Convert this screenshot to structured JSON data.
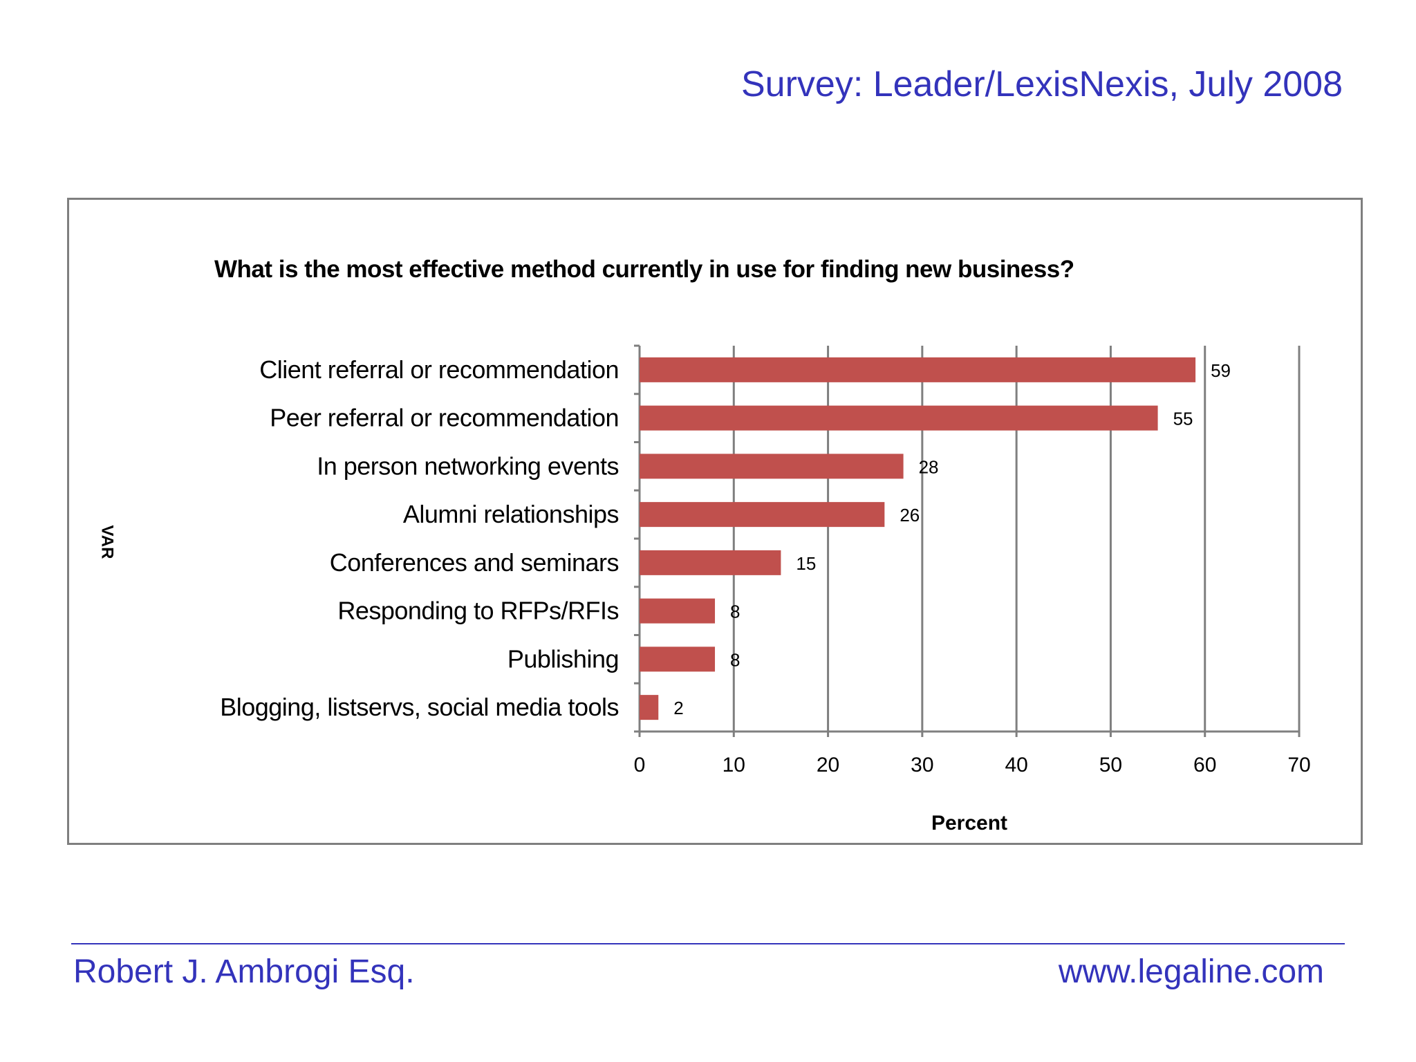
{
  "header": {
    "survey_label": "Survey: Leader/LexisNexis, July 2008"
  },
  "footer": {
    "author": "Robert J. Ambrogi Esq.",
    "website": "www.legaline.com"
  },
  "colors": {
    "accent_text": "#3333bb",
    "bar": "#c0504d",
    "axis": "#7f7f7f"
  },
  "chart_data": {
    "type": "bar",
    "orientation": "horizontal",
    "title": "What is the most effective method currently in use for finding new business?",
    "xlabel": "Percent",
    "ylabel": "",
    "xlim": [
      0,
      70
    ],
    "xticks": [
      0,
      10,
      20,
      30,
      40,
      50,
      60,
      70
    ],
    "grid": "vertical",
    "categories": [
      "Client referral or recommendation",
      "Peer referral or recommendation",
      "In person networking events",
      "Alumni relationships",
      "Conferences and seminars",
      "Responding to RFPs/RFIs",
      "Publishing",
      "Blogging, listservs, social media tools"
    ],
    "values": [
      59,
      55,
      28,
      26,
      15,
      8,
      8,
      2
    ]
  }
}
